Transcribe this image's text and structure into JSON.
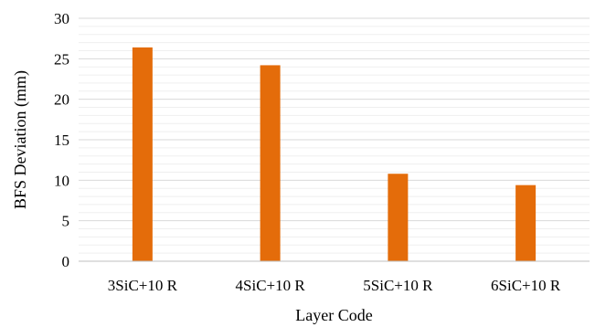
{
  "chart_data": {
    "type": "bar",
    "title": "",
    "xlabel": "Layer Code",
    "ylabel": "BFS Deviation (mm)",
    "categories": [
      "3SiC+10 R",
      "4SiC+10 R",
      "5SiC+10 R",
      "6SiC+10 R"
    ],
    "values": [
      26.4,
      24.2,
      10.8,
      9.4
    ],
    "ylim": [
      0,
      30
    ],
    "yticks": [
      0,
      5,
      10,
      15,
      20,
      25,
      30
    ],
    "grid": true,
    "legend": "none",
    "bar_color": "#E46C0A"
  }
}
